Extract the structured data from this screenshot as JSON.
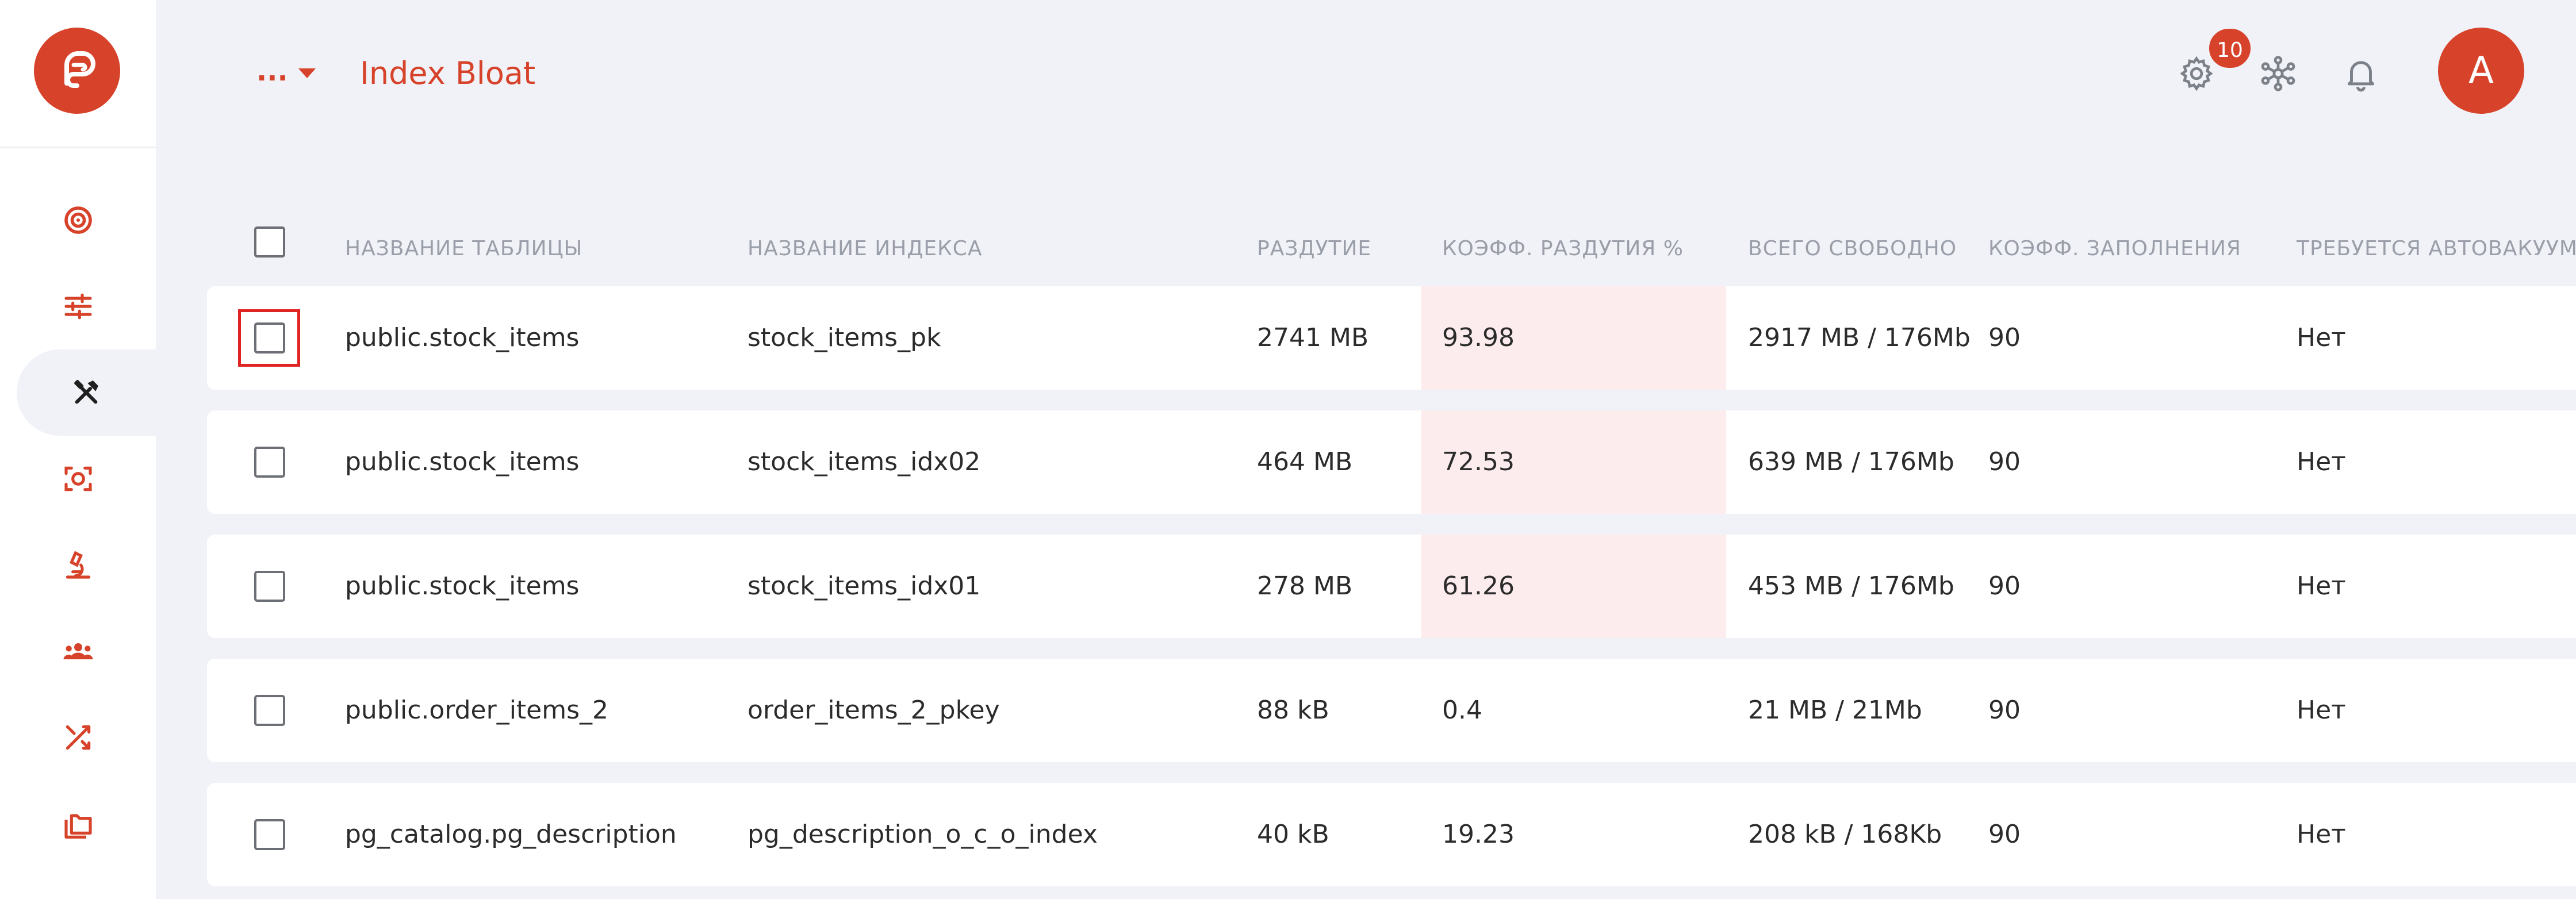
{
  "header": {
    "more_label": "...",
    "title": "Index Bloat",
    "notifications_count": "10",
    "avatar_initial": "A",
    "icons": [
      "gear-icon",
      "network-icon",
      "bell-icon"
    ]
  },
  "sidebar": {
    "items": [
      {
        "icon": "target-icon"
      },
      {
        "icon": "sliders-icon"
      },
      {
        "icon": "tools-icon",
        "active": true
      },
      {
        "icon": "scan-icon"
      },
      {
        "icon": "microscope-icon"
      },
      {
        "icon": "users-icon"
      },
      {
        "icon": "shuffle-icon"
      },
      {
        "icon": "folders-icon"
      }
    ]
  },
  "table": {
    "columns": [
      "НАЗВАНИЕ ТАБЛИЦЫ",
      "НАЗВАНИЕ ИНДЕКСА",
      "РАЗДУТИЕ",
      "КОЭФФ. РАЗДУТИЯ %",
      "ВСЕГО СВОБОДНО",
      "КОЭФФ. ЗАПОЛНЕНИЯ",
      "ТРЕБУЕТСЯ АВТОВАКУУМ"
    ],
    "rows": [
      {
        "table": "public.stock_items",
        "index": "stock_items_pk",
        "bloat": "2741 MB",
        "ratio": "93.98",
        "free": "2917 MB / 176Mb",
        "fill": "90",
        "autovacuum": "Нет",
        "highlight": true
      },
      {
        "table": "public.stock_items",
        "index": "stock_items_idx02",
        "bloat": "464 MB",
        "ratio": "72.53",
        "free": "639 MB / 176Mb",
        "fill": "90",
        "autovacuum": "Нет",
        "highlight": true
      },
      {
        "table": "public.stock_items",
        "index": "stock_items_idx01",
        "bloat": "278 MB",
        "ratio": "61.26",
        "free": "453 MB / 176Mb",
        "fill": "90",
        "autovacuum": "Нет",
        "highlight": true
      },
      {
        "table": "public.order_items_2",
        "index": "order_items_2_pkey",
        "bloat": "88 kB",
        "ratio": "0.4",
        "free": "21 MB / 21Mb",
        "fill": "90",
        "autovacuum": "Нет",
        "highlight": false
      },
      {
        "table": "pg_catalog.pg_description",
        "index": "pg_description_o_c_o_index",
        "bloat": "40 kB",
        "ratio": "19.23",
        "free": "208 kB / 168Kb",
        "fill": "90",
        "autovacuum": "Нет",
        "highlight": false
      }
    ]
  },
  "colors": {
    "accent": "#d7432a",
    "background": "#f0f2f7",
    "highlight_cell": "#fdecee",
    "focus_outline": "#e02424"
  }
}
